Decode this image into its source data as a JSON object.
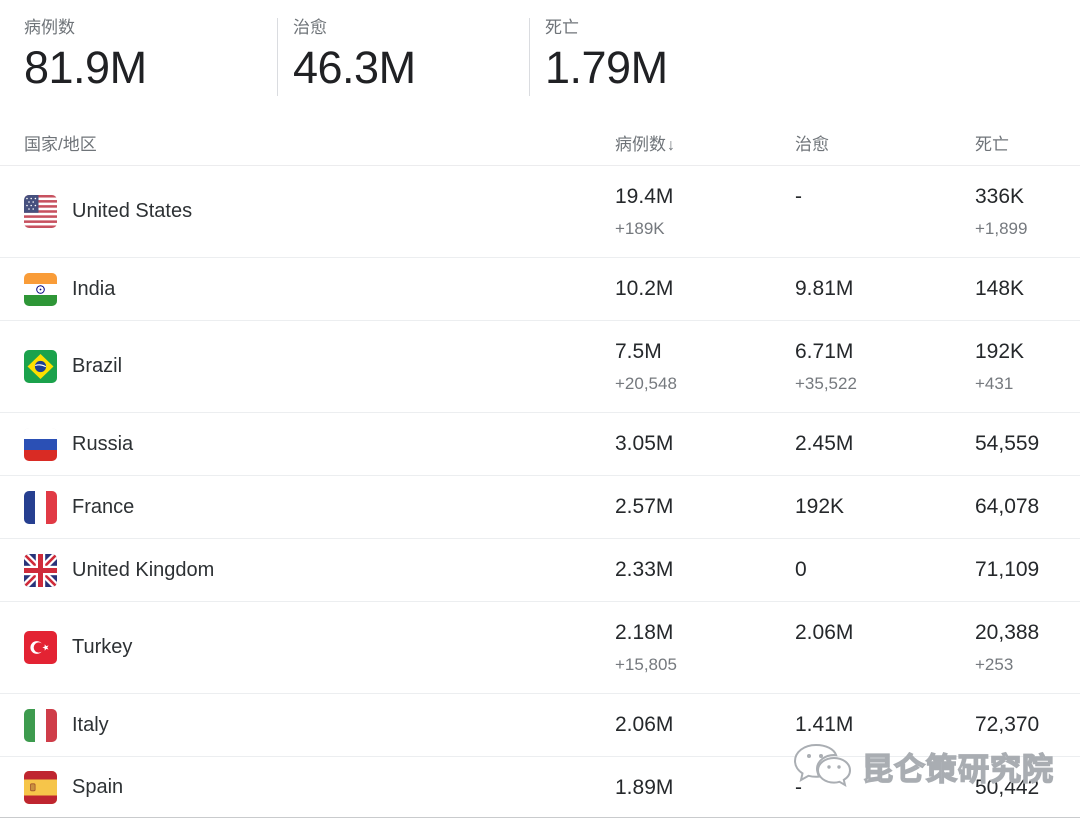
{
  "summary": {
    "stats": [
      {
        "label": "病例数",
        "value": "81.9M"
      },
      {
        "label": "治愈",
        "value": "46.3M"
      },
      {
        "label": "死亡",
        "value": "1.79M"
      }
    ]
  },
  "table": {
    "headers": {
      "country": "国家/地区",
      "cases": "病例数",
      "sort_arrow": "↓",
      "recovered": "治愈",
      "deaths": "死亡"
    },
    "rows": [
      {
        "country": "United States",
        "flag": "us",
        "cases": "19.4M",
        "cases_delta": "+189K",
        "recovered": "-",
        "recovered_delta": "",
        "deaths": "336K",
        "deaths_delta": "+1,899"
      },
      {
        "country": "India",
        "flag": "in",
        "cases": "10.2M",
        "cases_delta": "",
        "recovered": "9.81M",
        "recovered_delta": "",
        "deaths": "148K",
        "deaths_delta": ""
      },
      {
        "country": "Brazil",
        "flag": "br",
        "cases": "7.5M",
        "cases_delta": "+20,548",
        "recovered": "6.71M",
        "recovered_delta": "+35,522",
        "deaths": "192K",
        "deaths_delta": "+431"
      },
      {
        "country": "Russia",
        "flag": "ru",
        "cases": "3.05M",
        "cases_delta": "",
        "recovered": "2.45M",
        "recovered_delta": "",
        "deaths": "54,559",
        "deaths_delta": ""
      },
      {
        "country": "France",
        "flag": "fr",
        "cases": "2.57M",
        "cases_delta": "",
        "recovered": "192K",
        "recovered_delta": "",
        "deaths": "64,078",
        "deaths_delta": ""
      },
      {
        "country": "United Kingdom",
        "flag": "gb",
        "cases": "2.33M",
        "cases_delta": "",
        "recovered": "0",
        "recovered_delta": "",
        "deaths": "71,109",
        "deaths_delta": ""
      },
      {
        "country": "Turkey",
        "flag": "tr",
        "cases": "2.18M",
        "cases_delta": "+15,805",
        "recovered": "2.06M",
        "recovered_delta": "",
        "deaths": "20,388",
        "deaths_delta": "+253"
      },
      {
        "country": "Italy",
        "flag": "it",
        "cases": "2.06M",
        "cases_delta": "",
        "recovered": "1.41M",
        "recovered_delta": "",
        "deaths": "72,370",
        "deaths_delta": ""
      },
      {
        "country": "Spain",
        "flag": "es",
        "cases": "1.89M",
        "cases_delta": "",
        "recovered": "-",
        "recovered_delta": "",
        "deaths": "50,442",
        "deaths_delta": ""
      }
    ]
  },
  "watermark": {
    "text": "昆仑策研究院",
    "icon": "wechat-icon"
  },
  "colors": {
    "text_primary": "#202124",
    "text_secondary": "#70757a",
    "divider": "#ececee",
    "background": "#ffffff"
  }
}
